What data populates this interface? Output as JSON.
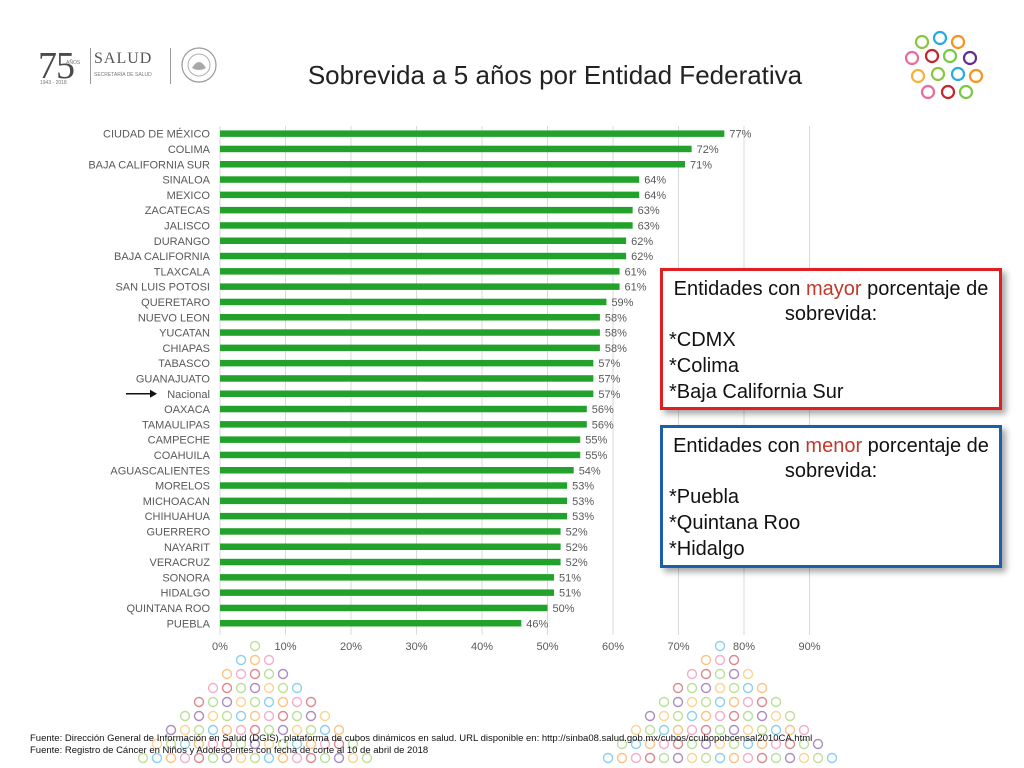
{
  "header": {
    "logo_75": "75",
    "logo_anos": "AÑOS",
    "logo_years": "1943 - 2018",
    "logo_salud": "SALUD",
    "logo_secretaria": "SECRETARÍA DE SALUD"
  },
  "title": "Sobrevida a 5 años por Entidad Federativa",
  "colors": {
    "bar": "#22a22b",
    "grid": "#d9d9d9",
    "label": "#595959",
    "mayor_border": "#e02020",
    "menor_border": "#1b5fa8",
    "accent": "#c0392b"
  },
  "chart_data": {
    "type": "bar",
    "orientation": "horizontal",
    "categories": [
      "CIUDAD DE MÉXICO",
      "COLIMA",
      "BAJA CALIFORNIA SUR",
      "SINALOA",
      "MEXICO",
      "ZACATECAS",
      "JALISCO",
      "DURANGO",
      "BAJA CALIFORNIA",
      "TLAXCALA",
      "SAN  LUIS POTOSI",
      "QUERETARO",
      "NUEVO LEON",
      "YUCATAN",
      "CHIAPAS",
      "TABASCO",
      "GUANAJUATO",
      "Nacional",
      "OAXACA",
      "TAMAULIPAS",
      "CAMPECHE",
      "COAHUILA",
      "AGUASCALIENTES",
      "MORELOS",
      "MICHOACAN",
      "CHIHUAHUA",
      "GUERRERO",
      "NAYARIT",
      "VERACRUZ",
      "SONORA",
      "HIDALGO",
      "QUINTANA ROO",
      "PUEBLA"
    ],
    "values": [
      77,
      72,
      71,
      64,
      64,
      63,
      63,
      62,
      62,
      61,
      61,
      59,
      58,
      58,
      58,
      57,
      57,
      57,
      56,
      56,
      55,
      55,
      54,
      53,
      53,
      53,
      52,
      52,
      52,
      51,
      51,
      50,
      46
    ],
    "value_labels": [
      "77%",
      "72%",
      "71%",
      "64%",
      "64%",
      "63%",
      "63%",
      "62%",
      "62%",
      "61%",
      "61%",
      "59%",
      "58%",
      "58%",
      "58%",
      "57%",
      "57%",
      "57%",
      "56%",
      "56%",
      "55%",
      "55%",
      "54%",
      "53%",
      "53%",
      "53%",
      "52%",
      "52%",
      "52%",
      "51%",
      "51%",
      "50%",
      "46%"
    ],
    "xlim": [
      0,
      90
    ],
    "xticks": [
      "0%",
      "10%",
      "20%",
      "30%",
      "40%",
      "50%",
      "60%",
      "70%",
      "80%",
      "90%"
    ],
    "highlight_category": "Nacional",
    "grid": true
  },
  "callouts": {
    "mayor": {
      "head_pre": "Entidades con ",
      "head_accent": "mayor",
      "head_post": " porcentaje de sobrevida:",
      "items": [
        "*CDMX",
        "*Colima",
        "*Baja California Sur"
      ]
    },
    "menor": {
      "head_pre": "Entidades con ",
      "head_accent": "menor",
      "head_post": " porcentaje de sobrevida:",
      "items": [
        "*Puebla",
        "*Quintana Roo",
        "*Hidalgo"
      ]
    }
  },
  "source": {
    "line1": "Fuente: Dirección General de Información en Salud (DGIS), plataforma de cubos dinámicos en salud. URL disponible en: http://sinba08.salud.gob.mx/cubos/ccubopobcensal2010CA.html",
    "line2": "Fuente: Registro de Cáncer en Niños y Adolescentes con fecha de corte al 10 de abril de 2018"
  }
}
